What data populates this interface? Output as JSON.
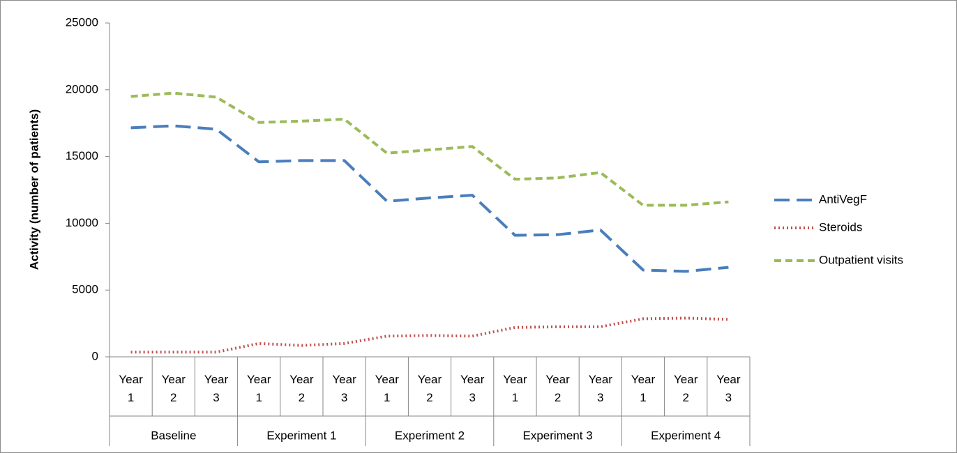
{
  "chart_data": {
    "type": "line",
    "y_label": "Activity (number of patients)",
    "categories": [
      "Year 1",
      "Year 2",
      "Year 3",
      "Year 1",
      "Year 2",
      "Year 3",
      "Year 1",
      "Year 2",
      "Year 3",
      "Year 1",
      "Year 2",
      "Year 3",
      "Year 1",
      "Year 2",
      "Year 3"
    ],
    "groups": [
      "Baseline",
      "Experiment 1",
      "Experiment 2",
      "Experiment 3",
      "Experiment 4"
    ],
    "series": [
      {
        "name": "AntiVegF",
        "color": "#4a7ebb",
        "dash": "22 10",
        "values": [
          17150,
          17300,
          17050,
          14600,
          14700,
          14700,
          11650,
          11900,
          12100,
          9100,
          9150,
          9500,
          6500,
          6400,
          6700
        ]
      },
      {
        "name": "Steroids",
        "color": "#c0504d",
        "dash": "2 4",
        "values": [
          350,
          350,
          350,
          1000,
          850,
          1000,
          1550,
          1600,
          1550,
          2200,
          2250,
          2250,
          2850,
          2900,
          2800
        ]
      },
      {
        "name": "Outpatient visits",
        "color": "#9bbb59",
        "dash": "10 6",
        "values": [
          19500,
          19750,
          19450,
          17550,
          17650,
          17800,
          15250,
          15500,
          15750,
          13300,
          13400,
          13800,
          11350,
          11350,
          11600
        ]
      }
    ],
    "ylim": [
      0,
      25000
    ],
    "yticks": [
      0,
      5000,
      10000,
      15000,
      20000,
      25000
    ],
    "grid": false,
    "legend": "right"
  }
}
